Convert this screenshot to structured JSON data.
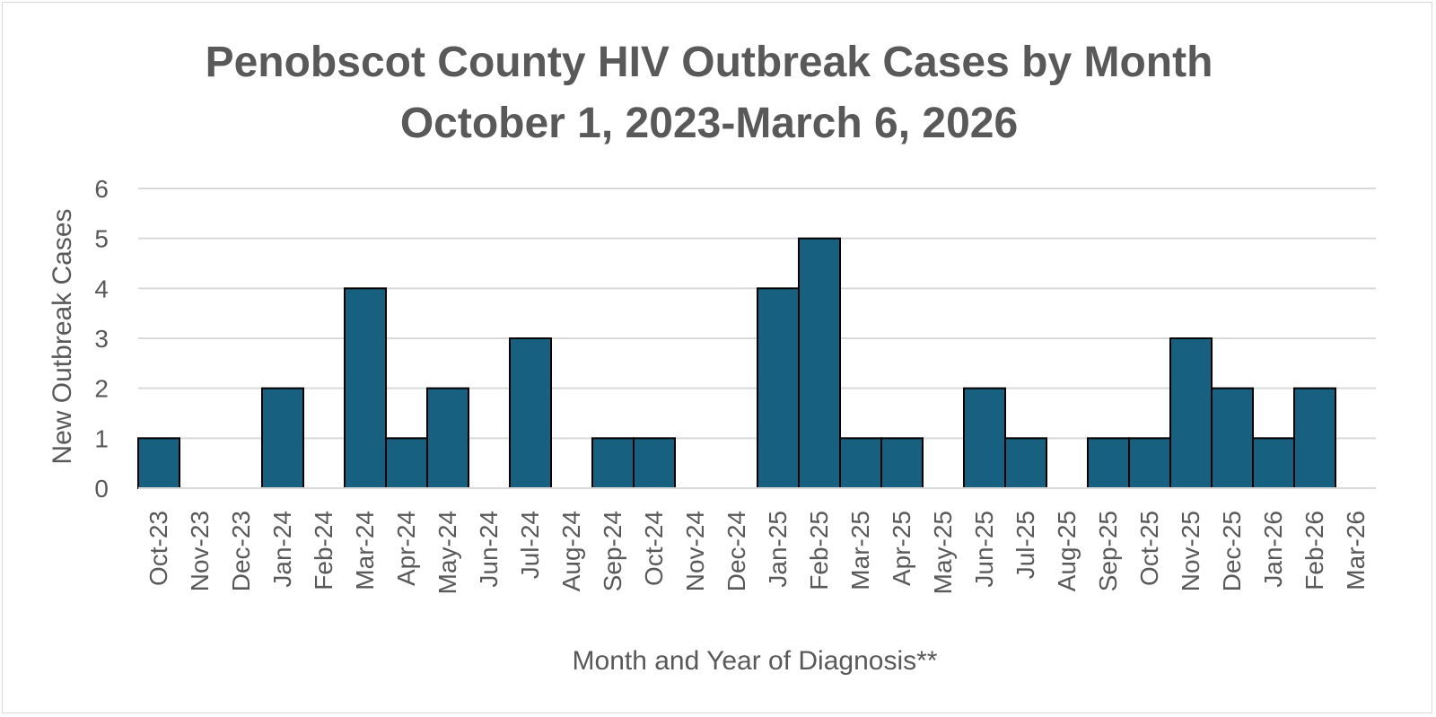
{
  "chart_data": {
    "type": "bar",
    "title": [
      "Penobscot County HIV Outbreak Cases by Month",
      "October 1, 2023-March 6, 2026"
    ],
    "xlabel": "Month and Year of Diagnosis**",
    "ylabel": "New Outbreak Cases",
    "ylim": [
      0,
      6
    ],
    "yticks": [
      "0",
      "1",
      "2",
      "3",
      "4",
      "5",
      "6"
    ],
    "grid": true,
    "bar_color": "#17607f",
    "bar_edge_color": "#000000",
    "grid_color": "#d9d9d9",
    "categories": [
      "Oct-23",
      "Nov-23",
      "Dec-23",
      "Jan-24",
      "Feb-24",
      "Mar-24",
      "Apr-24",
      "May-24",
      "Jun-24",
      "Jul-24",
      "Aug-24",
      "Sep-24",
      "Oct-24",
      "Nov-24",
      "Dec-24",
      "Jan-25",
      "Feb-25",
      "Mar-25",
      "Apr-25",
      "May-25",
      "Jun-25",
      "Jul-25",
      "Aug-25",
      "Sep-25",
      "Oct-25",
      "Nov-25",
      "Dec-25",
      "Jan-26",
      "Feb-26",
      "Mar-26"
    ],
    "values": [
      1,
      0,
      0,
      2,
      0,
      4,
      1,
      2,
      0,
      3,
      0,
      1,
      1,
      0,
      0,
      4,
      5,
      1,
      1,
      0,
      2,
      1,
      0,
      1,
      1,
      3,
      2,
      1,
      2,
      0
    ]
  }
}
